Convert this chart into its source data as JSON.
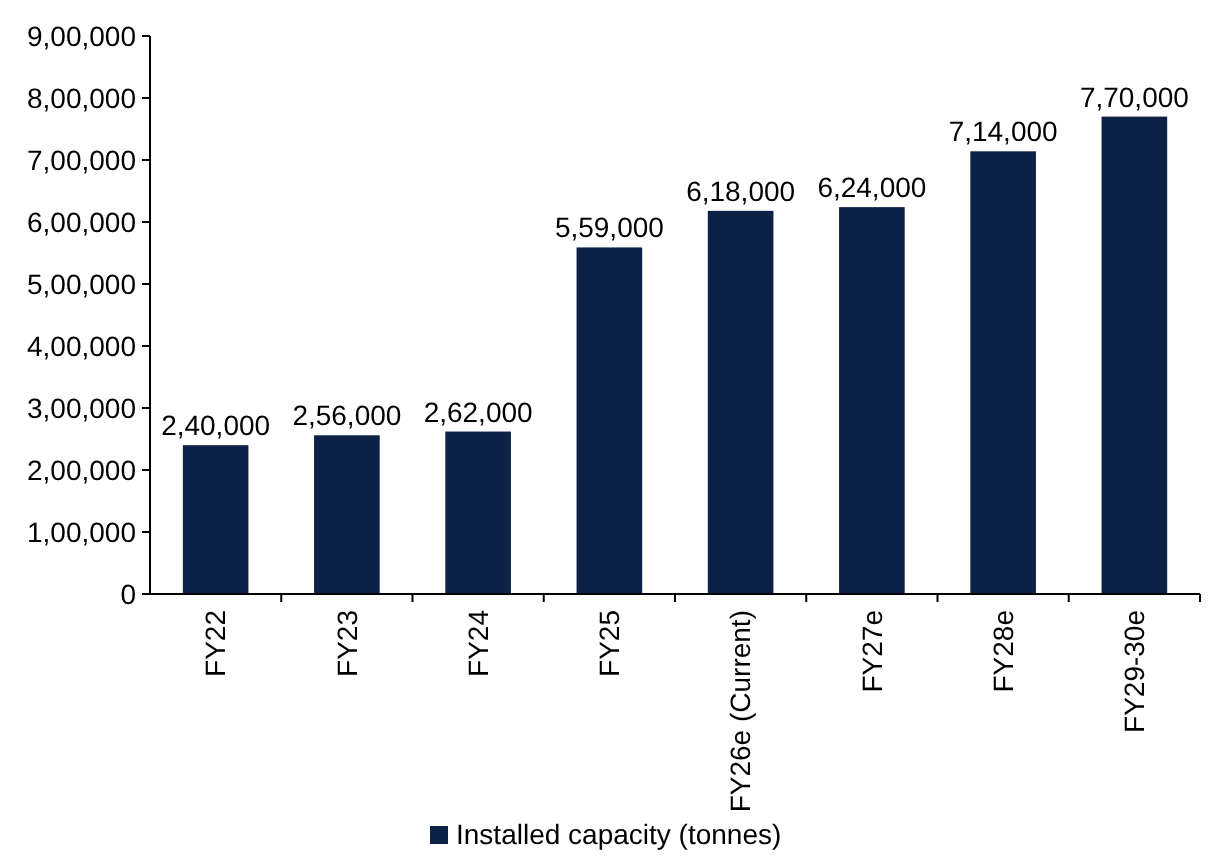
{
  "chart_data": {
    "type": "bar",
    "categories": [
      "FY22",
      "FY23",
      "FY24",
      "FY25",
      "FY26e (Current)",
      "FY27e",
      "FY28e",
      "FY29-30e"
    ],
    "series": [
      {
        "name": "Installed capacity (tonnes)",
        "color": "#0b2146",
        "values": [
          240000,
          256000,
          262000,
          559000,
          618000,
          624000,
          714000,
          770000
        ],
        "value_labels": [
          "2,40,000",
          "2,56,000",
          "2,62,000",
          "5,59,000",
          "6,18,000",
          "6,24,000",
          "7,14,000",
          "7,70,000"
        ]
      }
    ],
    "ylim": [
      0,
      900000
    ],
    "yticks": [
      0,
      {
        "value": 100000,
        "label": "1,00,000"
      },
      {
        "value": 200000,
        "label": "2,00,000"
      },
      {
        "value": 300000,
        "label": "3,00,000"
      },
      {
        "value": 400000,
        "label": "4,00,000"
      },
      {
        "value": 500000,
        "label": "5,00,000"
      },
      {
        "value": 600000,
        "label": "6,00,000"
      },
      {
        "value": 700000,
        "label": "7,00,000"
      },
      {
        "value": 800000,
        "label": "8,00,000"
      },
      {
        "value": 900000,
        "label": "9,00,000"
      }
    ],
    "legend": "bottom"
  }
}
